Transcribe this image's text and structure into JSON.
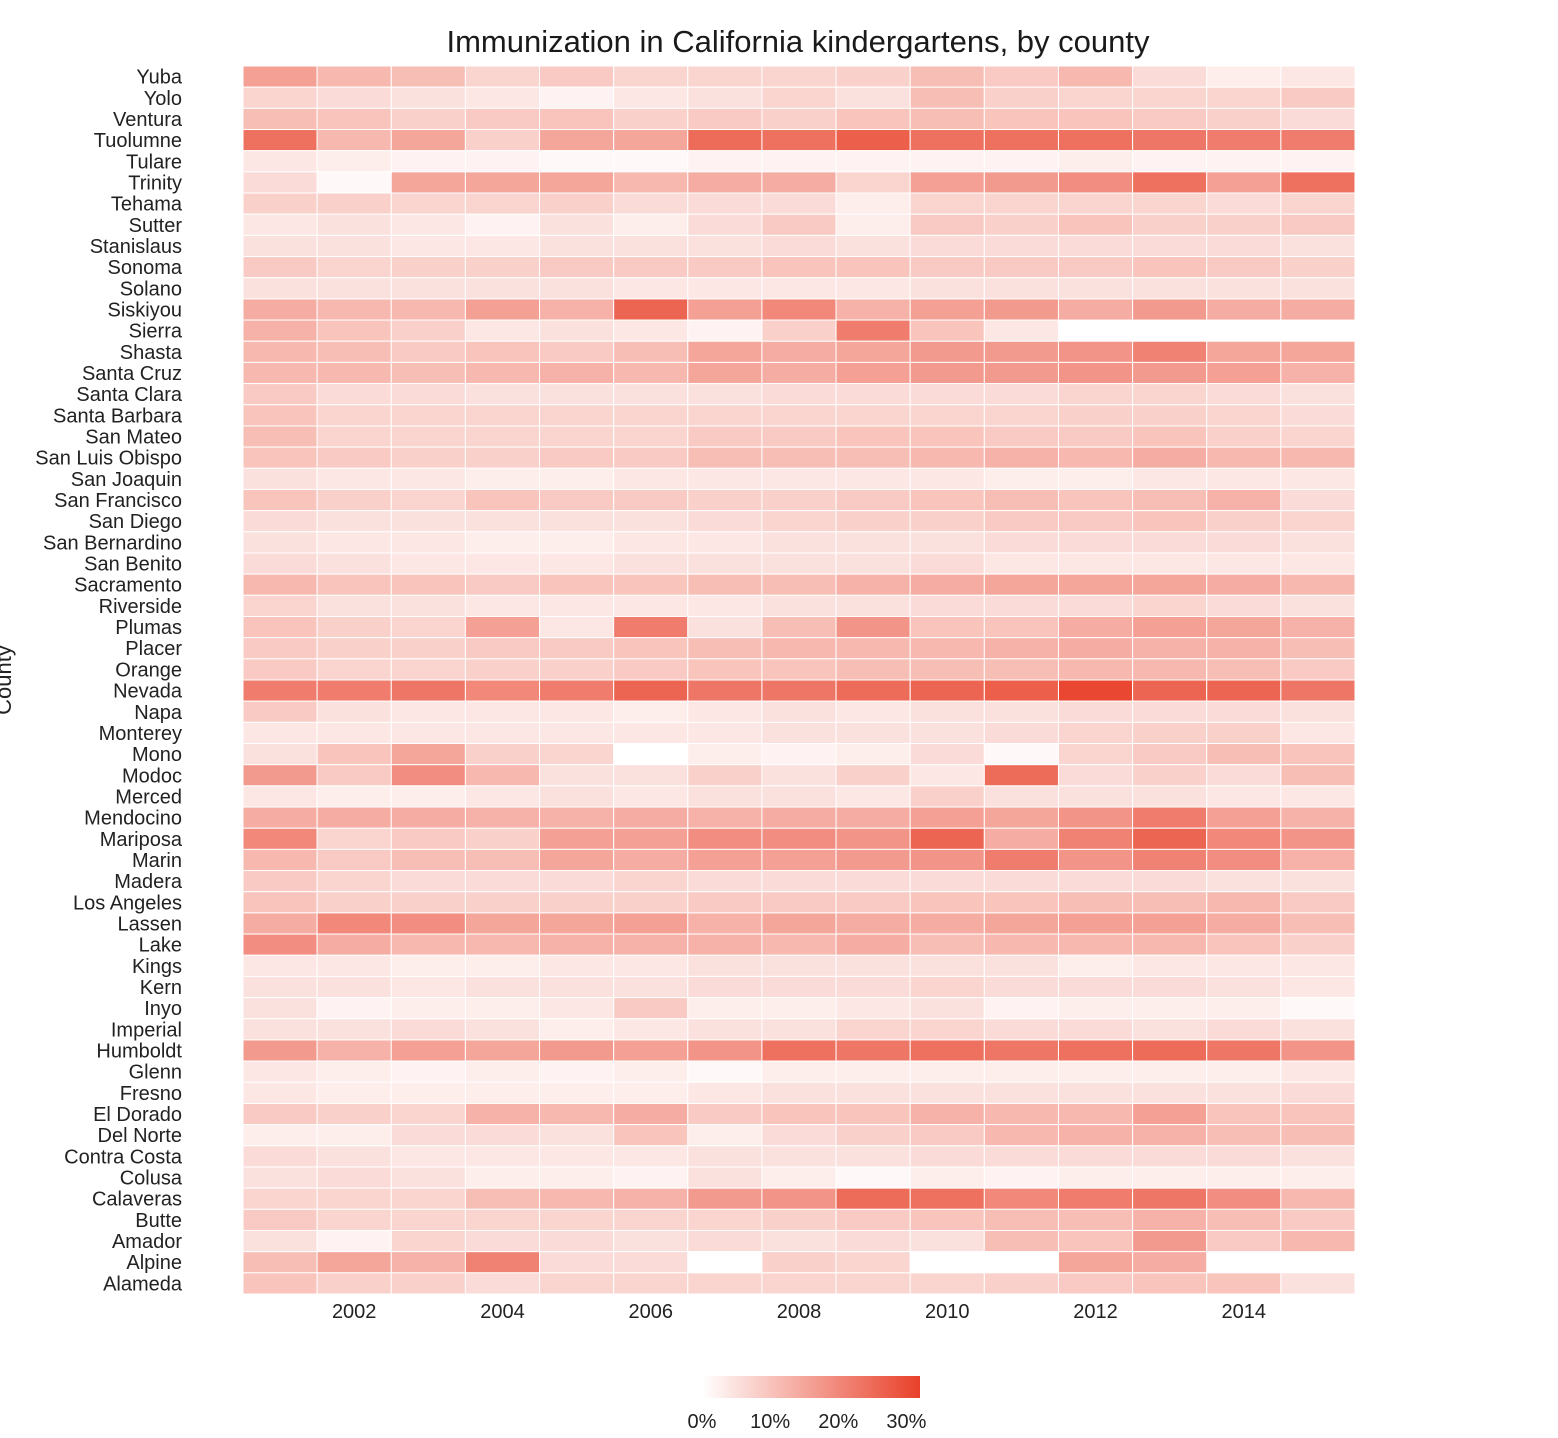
{
  "chart_data": {
    "type": "heatmap",
    "title": "Immunization in California kindergartens, by county",
    "ylabel": "County",
    "xlabel": "",
    "x": [
      2001,
      2002,
      2003,
      2004,
      2005,
      2006,
      2007,
      2008,
      2009,
      2010,
      2011,
      2012,
      2013,
      2014,
      2015
    ],
    "x_tick_labels": [
      "2002",
      "2004",
      "2006",
      "2008",
      "2010",
      "2012",
      "2014"
    ],
    "x_tick_values": [
      2002,
      2004,
      2006,
      2008,
      2010,
      2012,
      2014
    ],
    "value_unit": "%",
    "color_range": [
      0,
      32
    ],
    "color_low": "#ffffff",
    "color_high": "#e8412a",
    "legend": {
      "placement": "bottom-center",
      "tick_labels": [
        "0%",
        "10%",
        "20%",
        "30%"
      ],
      "tick_values": [
        0,
        10,
        20,
        30
      ]
    },
    "grid": false,
    "counties": [
      {
        "name": "Yuba",
        "values": [
          16,
          12,
          11,
          7,
          9,
          7,
          7,
          7,
          8,
          11,
          9,
          12,
          6,
          3,
          4
        ]
      },
      {
        "name": "Yolo",
        "values": [
          7,
          6,
          5,
          4,
          2,
          4,
          5,
          7,
          5,
          11,
          8,
          7,
          7,
          7,
          9
        ]
      },
      {
        "name": "Ventura",
        "values": [
          11,
          10,
          8,
          9,
          10,
          8,
          9,
          8,
          10,
          11,
          10,
          10,
          9,
          8,
          6
        ]
      },
      {
        "name": "Tuolumne",
        "values": [
          24,
          12,
          15,
          8,
          15,
          15,
          25,
          24,
          27,
          24,
          24,
          24,
          23,
          22,
          22
        ]
      },
      {
        "name": "Tulare",
        "values": [
          4,
          3,
          2,
          2,
          1,
          1,
          2,
          2,
          2,
          2,
          2,
          3,
          2,
          2,
          2
        ]
      },
      {
        "name": "Trinity",
        "values": [
          6,
          1,
          15,
          15,
          15,
          12,
          14,
          14,
          7,
          16,
          17,
          19,
          24,
          16,
          24
        ]
      },
      {
        "name": "Tehama",
        "values": [
          8,
          8,
          7,
          7,
          8,
          6,
          6,
          6,
          3,
          7,
          7,
          7,
          7,
          6,
          7
        ]
      },
      {
        "name": "Sutter",
        "values": [
          4,
          5,
          4,
          2,
          5,
          3,
          6,
          9,
          3,
          9,
          8,
          10,
          8,
          8,
          9
        ]
      },
      {
        "name": "Stanislaus",
        "values": [
          5,
          5,
          4,
          4,
          5,
          5,
          5,
          6,
          5,
          6,
          6,
          6,
          6,
          6,
          5
        ]
      },
      {
        "name": "Sonoma",
        "values": [
          9,
          7,
          8,
          8,
          9,
          9,
          9,
          10,
          10,
          9,
          9,
          9,
          10,
          9,
          8
        ]
      },
      {
        "name": "Solano",
        "values": [
          5,
          5,
          5,
          5,
          5,
          4,
          4,
          4,
          4,
          5,
          5,
          5,
          5,
          5,
          5
        ]
      },
      {
        "name": "Siskiyou",
        "values": [
          14,
          12,
          12,
          16,
          13,
          26,
          16,
          20,
          13,
          16,
          17,
          14,
          17,
          14,
          14
        ]
      },
      {
        "name": "Sierra",
        "values": [
          13,
          10,
          8,
          4,
          5,
          4,
          2,
          8,
          22,
          10,
          4,
          null,
          null,
          null,
          null
        ]
      },
      {
        "name": "Shasta",
        "values": [
          12,
          11,
          9,
          10,
          9,
          11,
          15,
          14,
          15,
          17,
          17,
          18,
          21,
          15,
          15
        ]
      },
      {
        "name": "Santa Cruz",
        "values": [
          12,
          12,
          11,
          12,
          13,
          12,
          15,
          14,
          16,
          17,
          17,
          18,
          17,
          16,
          13
        ]
      },
      {
        "name": "Santa Clara",
        "values": [
          9,
          6,
          6,
          5,
          5,
          5,
          5,
          6,
          6,
          6,
          6,
          7,
          7,
          6,
          5
        ]
      },
      {
        "name": "Santa Barbara",
        "values": [
          10,
          7,
          7,
          7,
          7,
          7,
          7,
          7,
          7,
          7,
          7,
          8,
          8,
          7,
          6
        ]
      },
      {
        "name": "San Mateo",
        "values": [
          11,
          7,
          7,
          7,
          7,
          7,
          9,
          9,
          10,
          10,
          9,
          9,
          10,
          8,
          7
        ]
      },
      {
        "name": "San Luis Obispo",
        "values": [
          10,
          9,
          8,
          8,
          9,
          9,
          11,
          11,
          11,
          12,
          13,
          12,
          14,
          12,
          12
        ]
      },
      {
        "name": "San Joaquin",
        "values": [
          5,
          4,
          4,
          3,
          3,
          4,
          4,
          4,
          4,
          4,
          3,
          3,
          4,
          4,
          4
        ]
      },
      {
        "name": "San Francisco",
        "values": [
          10,
          8,
          7,
          10,
          9,
          9,
          8,
          8,
          9,
          10,
          11,
          10,
          11,
          13,
          6
        ]
      },
      {
        "name": "San Diego",
        "values": [
          6,
          5,
          5,
          5,
          5,
          5,
          6,
          7,
          8,
          8,
          9,
          9,
          10,
          8,
          7
        ]
      },
      {
        "name": "San Bernardino",
        "values": [
          5,
          4,
          4,
          3,
          3,
          4,
          4,
          5,
          5,
          5,
          6,
          6,
          6,
          6,
          5
        ]
      },
      {
        "name": "San Benito",
        "values": [
          6,
          5,
          4,
          4,
          4,
          5,
          5,
          5,
          5,
          6,
          4,
          4,
          4,
          4,
          4
        ]
      },
      {
        "name": "Sacramento",
        "values": [
          12,
          10,
          10,
          9,
          10,
          10,
          11,
          11,
          13,
          14,
          15,
          15,
          15,
          14,
          12
        ]
      },
      {
        "name": "Riverside",
        "values": [
          7,
          5,
          5,
          4,
          4,
          4,
          4,
          5,
          5,
          6,
          6,
          6,
          7,
          6,
          5
        ]
      },
      {
        "name": "Plumas",
        "values": [
          10,
          8,
          7,
          16,
          4,
          22,
          5,
          11,
          18,
          10,
          10,
          14,
          16,
          15,
          13
        ]
      },
      {
        "name": "Placer",
        "values": [
          9,
          8,
          8,
          9,
          9,
          10,
          11,
          12,
          12,
          12,
          13,
          14,
          13,
          13,
          11
        ]
      },
      {
        "name": "Orange",
        "values": [
          9,
          7,
          7,
          8,
          8,
          9,
          10,
          10,
          11,
          11,
          11,
          12,
          12,
          11,
          9
        ]
      },
      {
        "name": "Nevada",
        "values": [
          22,
          22,
          23,
          20,
          22,
          26,
          23,
          23,
          25,
          26,
          27,
          31,
          26,
          26,
          23
        ]
      },
      {
        "name": "Napa",
        "values": [
          9,
          5,
          4,
          4,
          4,
          3,
          4,
          5,
          4,
          5,
          5,
          6,
          6,
          6,
          5
        ]
      },
      {
        "name": "Monterey",
        "values": [
          4,
          4,
          4,
          4,
          4,
          4,
          4,
          5,
          5,
          5,
          6,
          7,
          8,
          8,
          4
        ]
      },
      {
        "name": "Mono",
        "values": [
          5,
          10,
          15,
          8,
          7,
          0,
          3,
          2,
          3,
          6,
          1,
          7,
          9,
          11,
          10
        ]
      },
      {
        "name": "Modoc",
        "values": [
          17,
          9,
          19,
          12,
          5,
          5,
          8,
          5,
          8,
          4,
          25,
          6,
          8,
          6,
          11
        ]
      },
      {
        "name": "Merced",
        "values": [
          4,
          3,
          3,
          4,
          5,
          4,
          5,
          5,
          4,
          8,
          5,
          5,
          5,
          4,
          4
        ]
      },
      {
        "name": "Mendocino",
        "values": [
          14,
          14,
          14,
          13,
          13,
          14,
          13,
          14,
          14,
          16,
          15,
          18,
          22,
          16,
          13
        ]
      },
      {
        "name": "Mariposa",
        "values": [
          20,
          7,
          9,
          8,
          16,
          16,
          19,
          19,
          18,
          26,
          14,
          21,
          26,
          20,
          18
        ]
      },
      {
        "name": "Marin",
        "values": [
          12,
          9,
          11,
          11,
          15,
          14,
          16,
          16,
          17,
          18,
          22,
          18,
          21,
          19,
          13
        ]
      },
      {
        "name": "Madera",
        "values": [
          9,
          7,
          6,
          6,
          6,
          7,
          6,
          6,
          6,
          6,
          6,
          6,
          6,
          5,
          5
        ]
      },
      {
        "name": "Los Angeles",
        "values": [
          10,
          8,
          8,
          8,
          8,
          8,
          9,
          9,
          9,
          10,
          10,
          11,
          11,
          12,
          9
        ]
      },
      {
        "name": "Lassen",
        "values": [
          14,
          20,
          19,
          15,
          15,
          16,
          13,
          15,
          14,
          14,
          15,
          16,
          16,
          14,
          11
        ]
      },
      {
        "name": "Lake",
        "values": [
          19,
          14,
          12,
          12,
          13,
          13,
          13,
          12,
          14,
          11,
          12,
          12,
          12,
          10,
          8
        ]
      },
      {
        "name": "Kings",
        "values": [
          4,
          4,
          3,
          3,
          4,
          4,
          5,
          5,
          5,
          5,
          5,
          3,
          4,
          4,
          4
        ]
      },
      {
        "name": "Kern",
        "values": [
          5,
          5,
          4,
          5,
          5,
          5,
          6,
          6,
          6,
          7,
          6,
          6,
          6,
          5,
          4
        ]
      },
      {
        "name": "Inyo",
        "values": [
          5,
          2,
          3,
          3,
          4,
          9,
          3,
          3,
          4,
          5,
          2,
          3,
          3,
          3,
          1
        ]
      },
      {
        "name": "Imperial",
        "values": [
          5,
          5,
          6,
          5,
          3,
          4,
          5,
          5,
          7,
          7,
          6,
          6,
          5,
          6,
          5
        ]
      },
      {
        "name": "Humboldt",
        "values": [
          17,
          13,
          16,
          15,
          17,
          16,
          18,
          24,
          23,
          24,
          23,
          24,
          25,
          23,
          18
        ]
      },
      {
        "name": "Glenn",
        "values": [
          4,
          3,
          2,
          3,
          2,
          3,
          1,
          3,
          3,
          3,
          3,
          3,
          3,
          3,
          4
        ]
      },
      {
        "name": "Fresno",
        "values": [
          4,
          3,
          3,
          3,
          3,
          3,
          4,
          5,
          5,
          5,
          5,
          5,
          5,
          5,
          6
        ]
      },
      {
        "name": "El Dorado",
        "values": [
          9,
          8,
          7,
          13,
          12,
          14,
          9,
          10,
          10,
          13,
          12,
          12,
          16,
          10,
          10
        ]
      },
      {
        "name": "Del Norte",
        "values": [
          3,
          3,
          6,
          6,
          5,
          10,
          3,
          6,
          8,
          9,
          12,
          13,
          13,
          11,
          11
        ]
      },
      {
        "name": "Contra Costa",
        "values": [
          6,
          5,
          4,
          4,
          4,
          4,
          5,
          5,
          5,
          6,
          6,
          6,
          6,
          6,
          5
        ]
      },
      {
        "name": "Colusa",
        "values": [
          5,
          6,
          5,
          3,
          3,
          2,
          5,
          3,
          1,
          3,
          2,
          3,
          3,
          3,
          3
        ]
      },
      {
        "name": "Calaveras",
        "values": [
          7,
          7,
          7,
          11,
          12,
          13,
          17,
          18,
          25,
          24,
          20,
          22,
          23,
          19,
          12
        ]
      },
      {
        "name": "Butte",
        "values": [
          9,
          7,
          7,
          7,
          7,
          7,
          7,
          8,
          9,
          10,
          11,
          11,
          13,
          11,
          9
        ]
      },
      {
        "name": "Amador",
        "values": [
          5,
          2,
          7,
          6,
          6,
          5,
          6,
          5,
          6,
          5,
          11,
          10,
          17,
          9,
          12
        ]
      },
      {
        "name": "Alpine",
        "values": [
          11,
          15,
          13,
          21,
          6,
          6,
          0,
          8,
          7,
          0,
          0,
          15,
          14,
          null,
          null
        ]
      },
      {
        "name": "Alameda",
        "values": [
          10,
          8,
          8,
          6,
          7,
          7,
          7,
          7,
          7,
          7,
          8,
          9,
          10,
          10,
          5
        ]
      }
    ]
  }
}
